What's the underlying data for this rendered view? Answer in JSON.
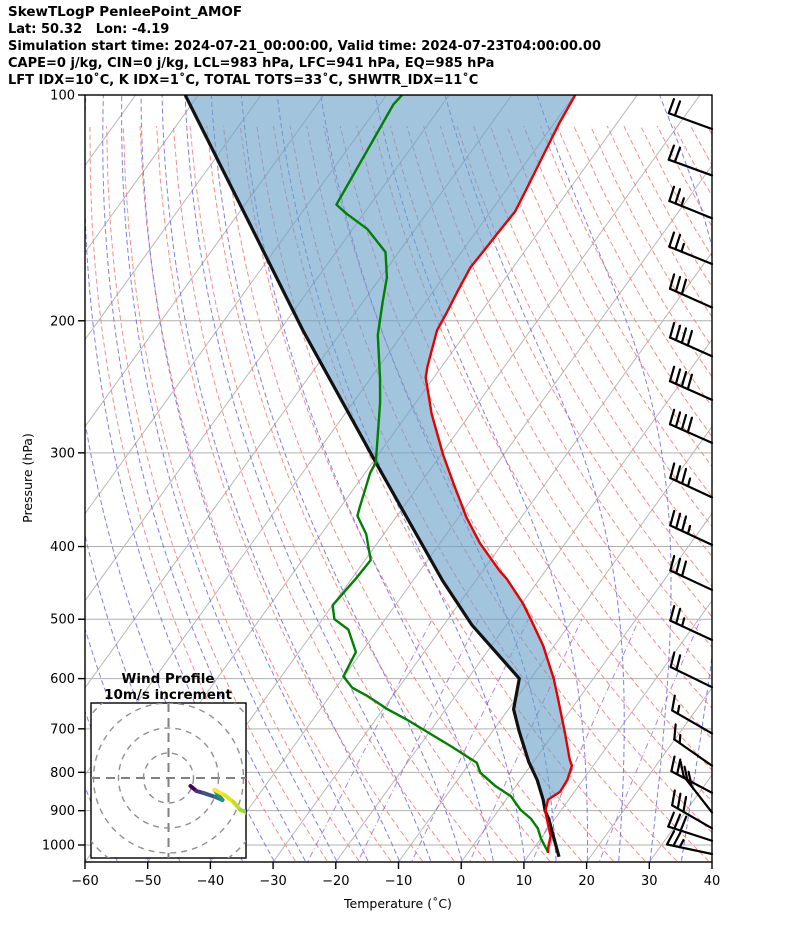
{
  "header": {
    "title": "SkewTLogP PenleePoint_AMOF",
    "latlon": "Lat: 50.32   Lon: -4.19",
    "times": "Simulation start time: 2024-07-21_00:00:00, Valid time: 2024-07-23T04:00:00.00",
    "indices1": "CAPE=0 j/kg, CIN=0 j/kg, LCL=983 hPa, LFC=941 hPa, EQ=985 hPa",
    "indices2": "LFT IDX=10˚C, K IDX=1˚C, TOTAL TOTS=33˚C, SHWTR_IDX=11˚C"
  },
  "axes": {
    "ylabel": "Pressure (hPa)",
    "xlabel": "Temperature (˚C)",
    "yticks": [
      100,
      200,
      300,
      400,
      500,
      600,
      700,
      800,
      900,
      1000
    ],
    "ytick_labels": [
      "100",
      "200",
      "300",
      "400",
      "500",
      "600",
      "700",
      "800",
      "900",
      "1000"
    ],
    "xticks": [
      -60,
      -50,
      -40,
      -30,
      -20,
      -10,
      0,
      10,
      20,
      30,
      40
    ],
    "xtick_labels": [
      "−60",
      "−50",
      "−40",
      "−30",
      "−20",
      "−10",
      "0",
      "10",
      "20",
      "30",
      "40"
    ],
    "xlim": [
      -60,
      40
    ],
    "plim": [
      100,
      1050
    ]
  },
  "colors": {
    "temperature": "#e60000",
    "dewpoint": "#008000",
    "parcel": "#111111",
    "fill": "rgba(106,160,200,0.62)",
    "isotherm": "#b8b8b8",
    "pressure_line": "#b0b0b0",
    "dry_adiabat": "#f2827d",
    "moist_adiabat": "#7272e0",
    "mixing_ratio": "#9a5fc0",
    "barb": "#000000",
    "frame": "#000000"
  },
  "chart_data": {
    "type": "line",
    "subtype": "skewt-logp",
    "title": "SkewTLogP PenleePoint_AMOF",
    "xlabel": "Temperature (˚C)",
    "ylabel": "Pressure (hPa)",
    "grid": true,
    "series": [
      {
        "name": "temperature",
        "units": [
          "hPa",
          "degC"
        ],
        "points": [
          [
            100,
            -69.9
          ],
          [
            109,
            -69.2
          ],
          [
            120,
            -68.1
          ],
          [
            133,
            -66.9
          ],
          [
            143,
            -66.1
          ],
          [
            153,
            -66.4
          ],
          [
            162,
            -66.6
          ],
          [
            170,
            -66.8
          ],
          [
            183,
            -66.1
          ],
          [
            195,
            -65.4
          ],
          [
            206,
            -64.9
          ],
          [
            230,
            -62.3
          ],
          [
            238,
            -61.3
          ],
          [
            266,
            -56.2
          ],
          [
            302,
            -49.6
          ],
          [
            329,
            -44.8
          ],
          [
            366,
            -38.7
          ],
          [
            396,
            -33.6
          ],
          [
            431,
            -27.3
          ],
          [
            442,
            -25.2
          ],
          [
            476,
            -19.9
          ],
          [
            500,
            -16.8
          ],
          [
            542,
            -11.8
          ],
          [
            600,
            -6.3
          ],
          [
            633,
            -3.7
          ],
          [
            707,
            1.6
          ],
          [
            770,
            5.6
          ],
          [
            784,
            6.6
          ],
          [
            819,
            7.5
          ],
          [
            849,
            7.7
          ],
          [
            870,
            6.7
          ],
          [
            902,
            7.6
          ],
          [
            944,
            9.8
          ],
          [
            973,
            11.3
          ],
          [
            1004,
            12.1
          ],
          [
            1025,
            12.8
          ]
        ]
      },
      {
        "name": "dewpoint",
        "units": [
          "hPa",
          "degC"
        ],
        "points": [
          [
            100,
            -97.5
          ],
          [
            103,
            -97.8
          ],
          [
            140,
            -95.4
          ],
          [
            144,
            -92.7
          ],
          [
            151,
            -87.6
          ],
          [
            162,
            -82.1
          ],
          [
            175,
            -79.0
          ],
          [
            189,
            -76.8
          ],
          [
            209,
            -73.8
          ],
          [
            238,
            -68.6
          ],
          [
            257,
            -65.7
          ],
          [
            309,
            -59.5
          ],
          [
            319,
            -59.2
          ],
          [
            355,
            -56.9
          ],
          [
            364,
            -56.3
          ],
          [
            385,
            -52.8
          ],
          [
            417,
            -49.1
          ],
          [
            439,
            -49.3
          ],
          [
            479,
            -50.0
          ],
          [
            500,
            -48.1
          ],
          [
            516,
            -44.7
          ],
          [
            553,
            -40.9
          ],
          [
            596,
            -40.1
          ],
          [
            617,
            -37.4
          ],
          [
            633,
            -34.0
          ],
          [
            659,
            -29.3
          ],
          [
            679,
            -25.3
          ],
          [
            710,
            -19.8
          ],
          [
            741,
            -14.5
          ],
          [
            777,
            -8.9
          ],
          [
            801,
            -7.2
          ],
          [
            835,
            -3.2
          ],
          [
            861,
            0.4
          ],
          [
            897,
            3.4
          ],
          [
            923,
            6.2
          ],
          [
            951,
            8.4
          ],
          [
            980,
            10.0
          ],
          [
            1022,
            12.7
          ]
        ]
      },
      {
        "name": "parcel",
        "units": [
          "hPa",
          "degC"
        ],
        "points": [
          [
            100,
            -132.1
          ],
          [
            149,
            -106.8
          ],
          [
            206,
            -86.3
          ],
          [
            316,
            -58.0
          ],
          [
            444,
            -35.3
          ],
          [
            509,
            -25.5
          ],
          [
            600,
            -11.8
          ],
          [
            659,
            -9.2
          ],
          [
            705,
            -5.8
          ],
          [
            775,
            -0.7
          ],
          [
            819,
            2.7
          ],
          [
            870,
            5.9
          ],
          [
            902,
            7.6
          ],
          [
            923,
            9.0
          ],
          [
            980,
            12.1
          ],
          [
            1037,
            15.0
          ]
        ]
      }
    ],
    "shading": {
      "between": [
        "parcel",
        "temperature"
      ],
      "color": "rgba(106,160,200,0.62)"
    },
    "wind_barbs": [
      {
        "p": 111,
        "deg": 20,
        "full": 2,
        "half": 0
      },
      {
        "p": 128,
        "deg": 20,
        "full": 2,
        "half": 0
      },
      {
        "p": 146,
        "deg": 22,
        "full": 2,
        "half": 1
      },
      {
        "p": 168,
        "deg": 22,
        "full": 2,
        "half": 1
      },
      {
        "p": 192,
        "deg": 24,
        "full": 3,
        "half": 0
      },
      {
        "p": 223,
        "deg": 24,
        "full": 4,
        "half": 0
      },
      {
        "p": 255,
        "deg": 24,
        "full": 4,
        "half": 0
      },
      {
        "p": 291,
        "deg": 24,
        "full": 4,
        "half": 0
      },
      {
        "p": 344,
        "deg": 25,
        "full": 3,
        "half": 1
      },
      {
        "p": 398,
        "deg": 25,
        "full": 3,
        "half": 1
      },
      {
        "p": 457,
        "deg": 25,
        "full": 3,
        "half": 0
      },
      {
        "p": 533,
        "deg": 25,
        "full": 2,
        "half": 1
      },
      {
        "p": 616,
        "deg": 26,
        "full": 2,
        "half": 0
      },
      {
        "p": 710,
        "deg": 30,
        "full": 1,
        "half": 1
      },
      {
        "p": 784,
        "deg": 35,
        "full": 1,
        "half": 1
      },
      {
        "p": 852,
        "deg": 28,
        "full": 2,
        "half": 0
      },
      {
        "p": 905,
        "deg": 52,
        "full": 3,
        "half": 0
      },
      {
        "p": 950,
        "deg": 30,
        "full": 3,
        "half": 0
      },
      {
        "p": 987,
        "deg": 18,
        "full": 3,
        "half": 0
      },
      {
        "p": 1028,
        "deg": 12,
        "full": 2,
        "half": 1
      }
    ],
    "hodograph": {
      "title": "Wind Profile",
      "subtitle": "10m/s increment",
      "ring_interval_ms": 10,
      "rings": [
        10,
        20,
        30,
        40
      ],
      "trace": {
        "u": [
          8.8,
          11.2,
          14.0,
          18.8,
          21.6,
          18.4,
          22.4,
          26.0,
          28.8,
          31.2,
          31.6
        ],
        "v": [
          -3.2,
          -5.2,
          -6.0,
          -7.6,
          -8.8,
          -4.8,
          -6.8,
          -9.6,
          -12.8,
          -13.6,
          -14.4
        ],
        "colors": [
          "#440154",
          "#46327e",
          "#3b528b",
          "#2c728e",
          "#21918c",
          "#fde725",
          "#e5e419",
          "#c2df23",
          "#95d840",
          "#73d056"
        ]
      }
    },
    "background_families": {
      "isotherm_step_c": 10,
      "dry_adiabat_step_c": 5,
      "moist_adiabat_step_c": 5,
      "mixing_ratio_g_kg": [
        0.5,
        1,
        2,
        4,
        8,
        16
      ]
    }
  }
}
